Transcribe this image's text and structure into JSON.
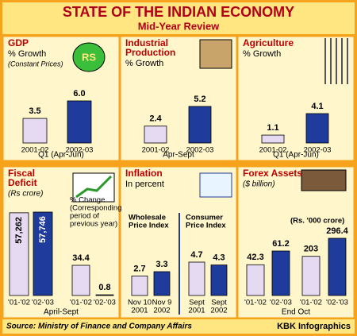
{
  "title": "STATE OF THE INDIAN ECONOMY",
  "subtitle": "Mid-Year Review",
  "source": "Source: Ministry of Finance and Company Affairs",
  "credit": "KBK Infographics",
  "chart_data": [
    {
      "type": "bar",
      "title": "GDP",
      "subtitle": "% Growth",
      "note": "(Constant Prices)",
      "icon_label": "RS",
      "xlabel": "Q1 (Apr-Jun)",
      "colors": [
        "#e6d9f2",
        "#1f3c9c"
      ],
      "groups": [
        {
          "categories": [
            "2001-02",
            "2002-03"
          ],
          "values": [
            3.5,
            6.0
          ],
          "value_labels": [
            "3.5",
            "6.0"
          ]
        }
      ]
    },
    {
      "type": "bar",
      "title": [
        "Industrial",
        "Production"
      ],
      "subtitle": "% Growth",
      "xlabel": "Apr-Sept",
      "colors": [
        "#e6d9f2",
        "#1f3c9c"
      ],
      "groups": [
        {
          "categories": [
            "2001-02",
            "2002-03"
          ],
          "values": [
            2.4,
            5.2
          ]
        }
      ]
    },
    {
      "type": "bar",
      "title": "Agriculture",
      "subtitle": "% Growth",
      "xlabel": "Q1 (Apr-Jun)",
      "colors": [
        "#e6d9f2",
        "#1f3c9c"
      ],
      "groups": [
        {
          "categories": [
            "2001-02",
            "2002-03"
          ],
          "values": [
            1.1,
            4.1
          ]
        }
      ]
    },
    {
      "type": "bar",
      "title": [
        "Fiscal",
        "Deficit"
      ],
      "subtitle": "(Rs crore)",
      "xlabel": "April-Sept",
      "colors": [
        "#e6d9f2",
        "#1f3c9c"
      ],
      "groups": [
        {
          "categories": [
            "'01-'02",
            "'02-'03"
          ],
          "values": [
            57262,
            57746
          ],
          "value_labels": [
            "57,262",
            "57,746"
          ]
        },
        {
          "name": [
            "% Change",
            "(Corresponding",
            "period of",
            "previous year)"
          ],
          "categories": [
            "'01-'02",
            "'02-'03"
          ],
          "values": [
            34.4,
            0.8
          ]
        }
      ]
    },
    {
      "type": "bar",
      "title": "Inflation",
      "subtitle": "In percent",
      "colors": [
        "#e6d9f2",
        "#1f3c9c"
      ],
      "groups": [
        {
          "name": [
            "Wholesale",
            "Price Index"
          ],
          "categories": [
            [
              "Nov 10",
              "2001"
            ],
            [
              "Nov 9",
              "2002"
            ]
          ],
          "values": [
            2.7,
            3.3
          ]
        },
        {
          "name": [
            "Consumer",
            "Price Index"
          ],
          "categories": [
            [
              "Sept",
              "2001"
            ],
            [
              "Sept",
              "2002"
            ]
          ],
          "values": [
            4.7,
            4.3
          ]
        }
      ]
    },
    {
      "type": "bar",
      "title": "Forex Assets",
      "subtitle": "($ billion)",
      "xlabel": "End Oct",
      "colors": [
        "#e6d9f2",
        "#1f3c9c"
      ],
      "groups": [
        {
          "categories": [
            "'01-'02",
            "'02-'03"
          ],
          "values": [
            42.3,
            61.2
          ]
        },
        {
          "name": "(Rs. '000 crore)",
          "categories": [
            "'01-'02",
            "'02-'03"
          ],
          "values": [
            203,
            296.4
          ]
        }
      ]
    }
  ]
}
